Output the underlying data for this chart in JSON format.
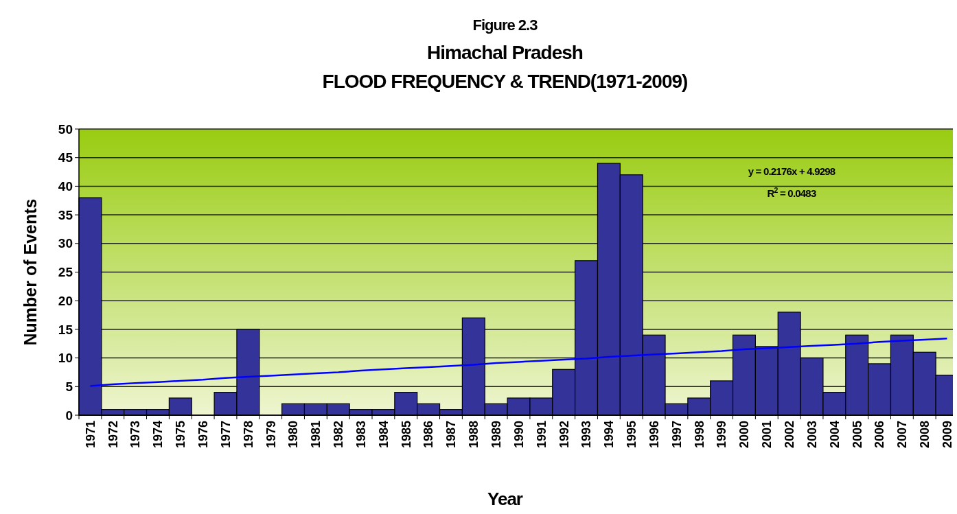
{
  "chart_data": {
    "type": "bar",
    "title": "Figure 2.3\nHimachal Pradesh\nFLOOD FREQUENCY & TREND(1971-2009)",
    "xlabel": "Year",
    "ylabel": "Number of Events",
    "categories": [
      "1971",
      "1972",
      "1973",
      "1974",
      "1975",
      "1976",
      "1977",
      "1978",
      "1979",
      "1980",
      "1981",
      "1982",
      "1983",
      "1984",
      "1985",
      "1986",
      "1987",
      "1988",
      "1989",
      "1990",
      "1991",
      "1992",
      "1993",
      "1994",
      "1995",
      "1996",
      "1997",
      "1998",
      "1999",
      "2000",
      "2001",
      "2002",
      "2003",
      "2004",
      "2005",
      "2006",
      "2007",
      "2008",
      "2009"
    ],
    "series": [
      {
        "color": "#333399",
        "values": [
          38,
          1,
          1,
          1,
          3,
          0,
          4,
          15,
          0,
          2,
          2,
          2,
          1,
          1,
          4,
          2,
          1,
          17,
          2,
          3,
          3,
          8,
          27,
          44,
          42,
          14,
          2,
          3,
          6,
          14,
          12,
          18,
          10,
          4,
          14,
          9,
          14,
          11,
          7
        ]
      },
      {
        "type": "line",
        "color": "#0000ff",
        "values": [
          5.1,
          5.4,
          5.6,
          5.8,
          6.0,
          6.2,
          6.5,
          6.7,
          6.9,
          7.1,
          7.3,
          7.5,
          7.8,
          8.0,
          8.2,
          8.4,
          8.6,
          8.8,
          9.1,
          9.3,
          9.5,
          9.7,
          9.9,
          10.2,
          10.4,
          10.6,
          10.8,
          11.0,
          11.2,
          11.5,
          11.7,
          11.9,
          12.1,
          12.3,
          12.5,
          12.8,
          13.0,
          13.2,
          13.4
        ]
      }
    ],
    "ylim": [
      0,
      50
    ],
    "yticks": [
      0,
      5,
      10,
      15,
      20,
      25,
      30,
      35,
      40,
      45,
      50
    ],
    "grid": "y",
    "annotations": [
      "y = 0.2176x + 4.9298",
      "R$^{2}$ = 0.0483"
    ]
  }
}
